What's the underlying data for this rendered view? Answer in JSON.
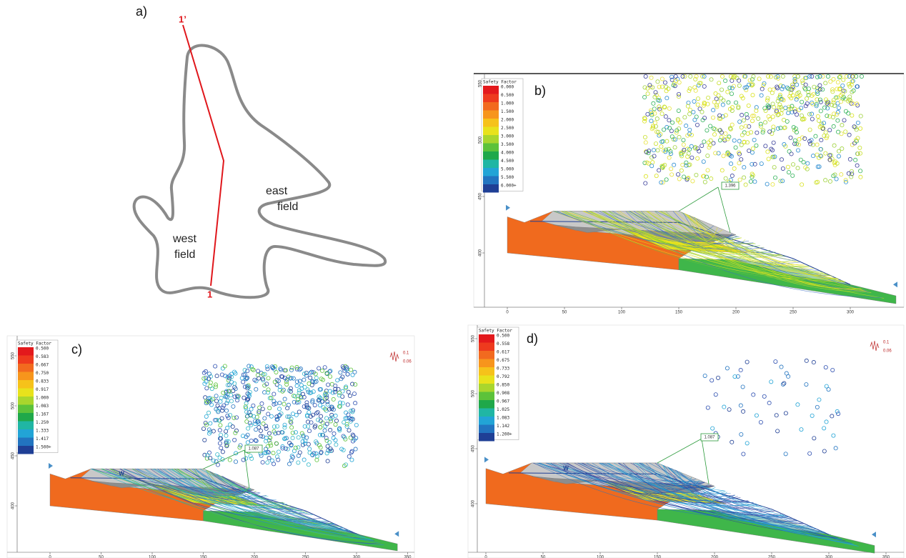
{
  "panel_a": {
    "label": "a)",
    "section_start": "1’",
    "section_end": "1",
    "east_label": [
      "east",
      "field"
    ],
    "west_label": [
      "west",
      "field"
    ]
  },
  "panel_b": {
    "label": "b)",
    "legend_title": "Safety Factor",
    "legend_values": [
      "0.000",
      "0.500",
      "1.000",
      "1.500",
      "2.000",
      "2.500",
      "3.000",
      "3.500",
      "4.000",
      "4.500",
      "5.000",
      "5.500",
      "6.000+"
    ],
    "min_fs": "1.396",
    "x_ticks": [
      0,
      50,
      100,
      150,
      200,
      250,
      300
    ],
    "y_ticks": [
      400,
      450,
      500,
      550
    ]
  },
  "panel_c": {
    "label": "c)",
    "legend_title": "Safety Factor",
    "legend_values": [
      "0.500",
      "0.583",
      "0.667",
      "0.750",
      "0.833",
      "0.917",
      "1.000",
      "1.083",
      "1.167",
      "1.250",
      "1.333",
      "1.417",
      "1.500+"
    ],
    "min_fs": "1.087",
    "seismic_h": "0.1",
    "seismic_v": "0.06",
    "water_label": "W",
    "x_ticks": [
      0,
      50,
      100,
      150,
      200,
      250,
      300,
      350
    ],
    "y_ticks": [
      400,
      450,
      500,
      550
    ]
  },
  "panel_d": {
    "label": "d)",
    "legend_title": "Safety Factor",
    "legend_values": [
      "0.500",
      "0.558",
      "0.617",
      "0.675",
      "0.733",
      "0.792",
      "0.850",
      "0.908",
      "0.967",
      "1.025",
      "1.083",
      "1.142",
      "1.200+"
    ],
    "min_fs": "1.087",
    "seismic_h": "0.1",
    "seismic_v": "0.06",
    "water_label": "W",
    "x_ticks": [
      0,
      50,
      100,
      150,
      200,
      250,
      300,
      350
    ],
    "y_ticks": [
      400,
      450,
      500,
      550
    ]
  }
}
